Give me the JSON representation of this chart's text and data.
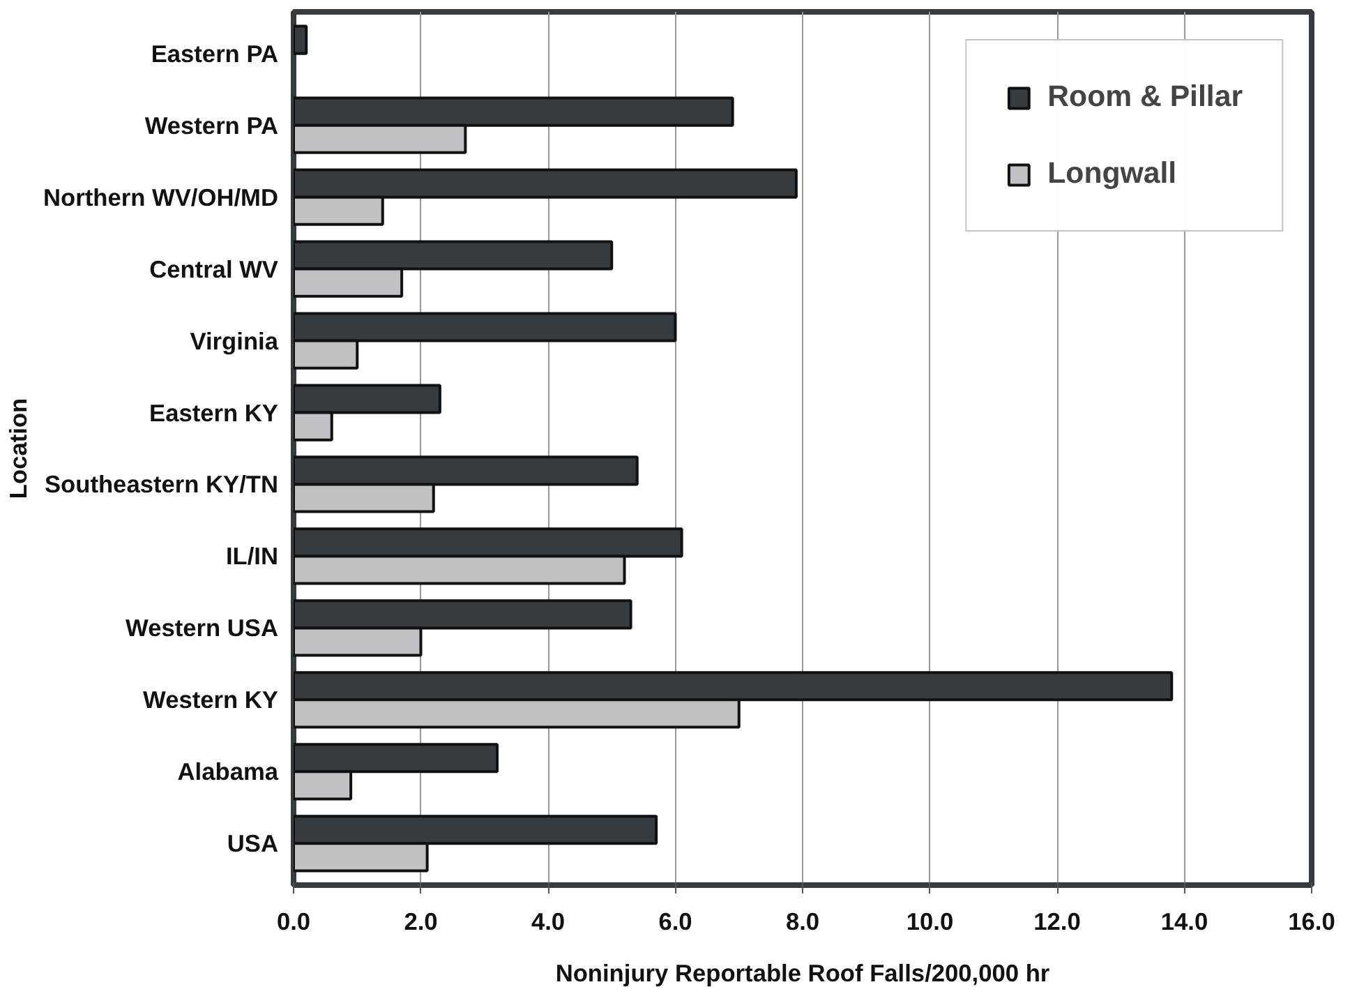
{
  "chart_data": {
    "type": "bar",
    "orientation": "horizontal",
    "xlabel": "Noninjury Reportable Roof Falls/200,000 hr",
    "ylabel": "Location",
    "categories": [
      "Eastern PA",
      "Western PA",
      "Northern WV/OH/MD",
      "Central WV",
      "Virginia",
      "Eastern KY",
      "Southeastern KY/TN",
      "IL/IN",
      "Western USA",
      "Western KY",
      "Alabama",
      "USA"
    ],
    "series": [
      {
        "name": "Room & Pillar",
        "color": "#353b3e",
        "values": [
          0.2,
          6.9,
          7.9,
          5.0,
          6.0,
          2.3,
          5.4,
          6.1,
          5.3,
          13.8,
          3.2,
          5.7
        ]
      },
      {
        "name": "Longwall",
        "color": "#c0c1c4",
        "values": [
          null,
          2.7,
          1.4,
          1.7,
          1.0,
          0.6,
          2.2,
          5.2,
          2.0,
          7.0,
          0.9,
          2.1
        ]
      }
    ],
    "xlim": [
      0,
      16
    ],
    "xticks": [
      {
        "value": 0,
        "label": "0.0"
      },
      {
        "value": 2,
        "label": "2.0"
      },
      {
        "value": 4,
        "label": "4.0"
      },
      {
        "value": 6,
        "label": "6.0"
      },
      {
        "value": 8,
        "label": "8.0"
      },
      {
        "value": 10,
        "label": "10.0"
      },
      {
        "value": 12,
        "label": "12.0"
      },
      {
        "value": 14,
        "label": "14.0"
      },
      {
        "value": 16,
        "label": "16.0"
      }
    ],
    "grid": "x",
    "legend": "top right"
  }
}
